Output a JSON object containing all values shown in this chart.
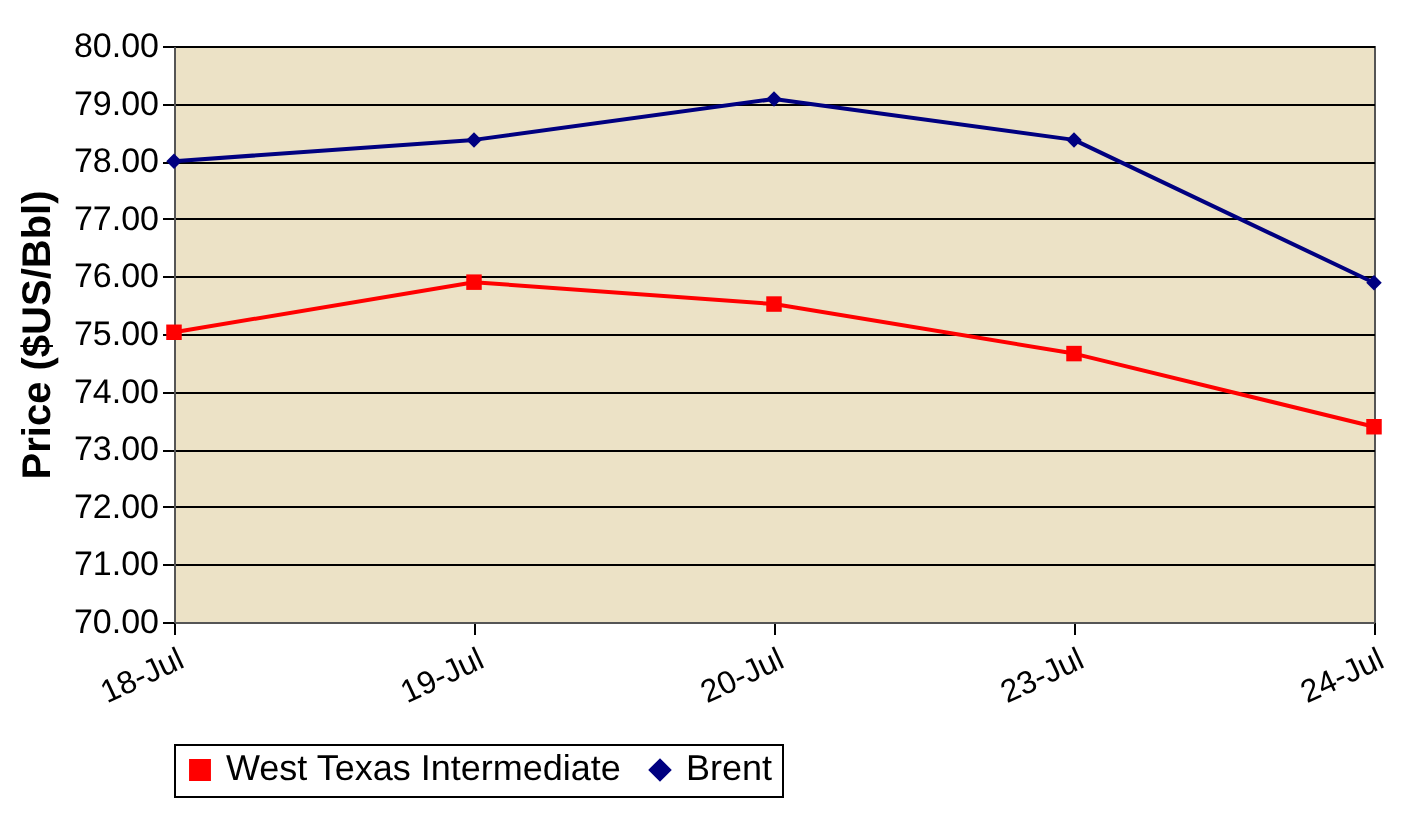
{
  "chart_data": {
    "type": "line",
    "ylabel": "Price ($US/Bbl)",
    "categories": [
      "18-Jul",
      "19-Jul",
      "20-Jul",
      "23-Jul",
      "24-Jul"
    ],
    "series": [
      {
        "name": "West Texas Intermediate",
        "color": "#ff0000",
        "marker": "square",
        "values": [
          75.03,
          75.9,
          75.52,
          74.66,
          73.39
        ]
      },
      {
        "name": "Brent",
        "color": "#000080",
        "marker": "diamond",
        "values": [
          78.0,
          78.37,
          79.08,
          78.37,
          75.89
        ]
      }
    ],
    "ylim": [
      70,
      80
    ],
    "yticks": [
      {
        "value": 70,
        "label": "70.00"
      },
      {
        "value": 71,
        "label": "71.00"
      },
      {
        "value": 72,
        "label": "72.00"
      },
      {
        "value": 73,
        "label": "73.00"
      },
      {
        "value": 74,
        "label": "74.00"
      },
      {
        "value": 75,
        "label": "75.00"
      },
      {
        "value": 76,
        "label": "76.00"
      },
      {
        "value": 77,
        "label": "77.00"
      },
      {
        "value": 78,
        "label": "78.00"
      },
      {
        "value": 79,
        "label": "79.00"
      },
      {
        "value": 80,
        "label": "80.00"
      }
    ],
    "grid": "y",
    "legend": "bottom",
    "line_style": "solid"
  }
}
